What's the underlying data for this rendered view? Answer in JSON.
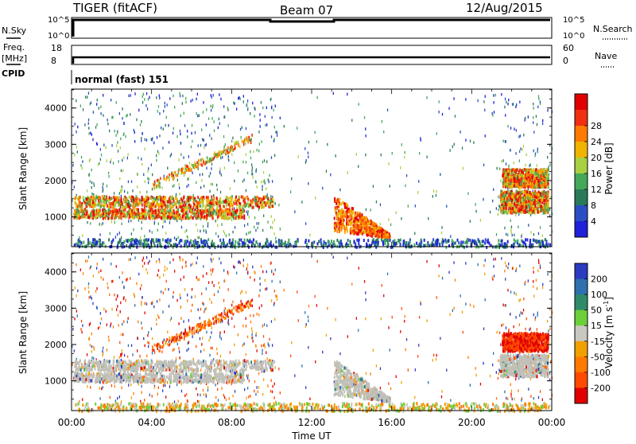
{
  "header": {
    "radar": "TIGER (fitACF)",
    "beam": "Beam 07",
    "date": "12/Aug/2015"
  },
  "strips": {
    "nsky_label": "N.Sky",
    "nsky_ticks": [
      "10^5",
      "10^0"
    ],
    "nsearch_label": "N.Search",
    "nsearch_ticks": [
      "10^5",
      "10^0"
    ],
    "freq_label_1": "Freq.",
    "freq_label_2": "[MHz]",
    "freq_ticks": [
      "18",
      "8"
    ],
    "nave_label": "Nave",
    "nave_ticks": [
      "60",
      "0"
    ],
    "cpid_label": "CPID",
    "cpid_text": "normal (fast) 151"
  },
  "colors": {
    "power": [
      "#1f22d8",
      "#2b4fc2",
      "#2a7a5a",
      "#44a85a",
      "#a8d040",
      "#f0b400",
      "#ff7a00",
      "#f03010",
      "#e00000"
    ],
    "velocity": [
      "#2c3cbf",
      "#2e70b0",
      "#2f8a6a",
      "#6ccf3a",
      "#c8c8c0",
      "#f0a000",
      "#ff7a00",
      "#ff4a00",
      "#e00000"
    ],
    "groundscatter": "#c0c0b8"
  },
  "chart_data": {
    "type": "heatmap",
    "xlabel": "Time UT",
    "x_ticks": [
      "00:00",
      "04:00",
      "08:00",
      "12:00",
      "16:00",
      "20:00",
      "00:00"
    ],
    "xlim": [
      0,
      24
    ],
    "panels": [
      {
        "name": "power",
        "ylabel": "Slant Range [km]",
        "y_ticks": [
          1000,
          2000,
          3000,
          4000
        ],
        "ylim": [
          180,
          4520
        ],
        "colorbar_label": "Power [dB]",
        "colorbar_ticks": [
          "4",
          "8",
          "12",
          "16",
          "20",
          "24",
          "28"
        ]
      },
      {
        "name": "velocity",
        "ylabel": "Slant Range [km]",
        "y_ticks": [
          1000,
          2000,
          3000,
          4000
        ],
        "ylim": [
          180,
          4520
        ],
        "colorbar_label": "Velocity [m s^-1]",
        "colorbar_ticks": [
          "200",
          "100",
          "50",
          "15",
          "-15",
          "-50",
          "-100",
          "-200"
        ]
      }
    ],
    "echo_regions": [
      {
        "t": [
          0.1,
          10.1
        ],
        "r": [
          1300,
          1600
        ],
        "kind": "band"
      },
      {
        "t": [
          0.1,
          8.6
        ],
        "r": [
          1000,
          1250
        ],
        "kind": "band"
      },
      {
        "t": [
          13.1,
          15.9
        ],
        "r": [
          650,
          1650
        ],
        "kind": "blob"
      },
      {
        "t": [
          21.4,
          23.8
        ],
        "r": [
          1150,
          1750
        ],
        "kind": "band"
      },
      {
        "t": [
          21.5,
          23.8
        ],
        "r": [
          1850,
          2350
        ],
        "kind": "band"
      },
      {
        "t": [
          0.1,
          23.9
        ],
        "r": [
          200,
          420
        ],
        "kind": "near"
      }
    ]
  }
}
